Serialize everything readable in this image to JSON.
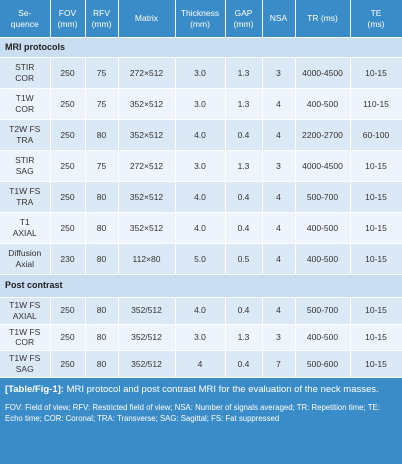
{
  "table": {
    "columns": [
      "Se-\nquence",
      "FOV\n(mm)",
      "RFV\n(mm)",
      "Matrix",
      "Thickness\n(mm)",
      "GAP\n(mm)",
      "NSA",
      "TR (ms)",
      "TE\n(ms)"
    ],
    "sections": [
      {
        "title": "MRI protocols",
        "rows": [
          [
            "STIR\nCOR",
            "250",
            "75",
            "272×512",
            "3.0",
            "1.3",
            "3",
            "4000-4500",
            "10-15"
          ],
          [
            "T1W\nCOR",
            "250",
            "75",
            "352×512",
            "3.0",
            "1.3",
            "4",
            "400-500",
            "110-15"
          ],
          [
            "T2W FS\nTRA",
            "250",
            "80",
            "352×512",
            "4.0",
            "0.4",
            "4",
            "2200-2700",
            "60-100"
          ],
          [
            "STIR\nSAG",
            "250",
            "75",
            "272×512",
            "3.0",
            "1.3",
            "3",
            "4000-4500",
            "10-15"
          ],
          [
            "T1W FS\nTRA",
            "250",
            "80",
            "352×512",
            "4.0",
            "0.4",
            "4",
            "500-700",
            "10-15"
          ],
          [
            "T1\nAXIAL",
            "250",
            "80",
            "352×512",
            "4.0",
            "0.4",
            "4",
            "400-500",
            "10-15"
          ],
          [
            "Diffusion\nAxial",
            "230",
            "80",
            "112×80",
            "5.0",
            "0.5",
            "4",
            "400-500",
            "10-15"
          ]
        ]
      },
      {
        "title": "Post contrast",
        "rows": [
          [
            "T1W FS\nAXIAL",
            "250",
            "80",
            "352/512",
            "4.0",
            "0.4",
            "4",
            "500-700",
            "10-15"
          ],
          [
            "T1W FS\nCOR",
            "250",
            "80",
            "352/512",
            "3.0",
            "1.3",
            "3",
            "400-500",
            "10-15"
          ],
          [
            "T1W FS\nSAG",
            "250",
            "80",
            "352/512",
            "4",
            "0.4",
            "7",
            "500-600",
            "10-15"
          ]
        ]
      }
    ]
  },
  "caption": {
    "label": "[Table/Fig-1]:",
    "text": "MRI protocol and post contrast MRI for the evaluation of the neck masses.",
    "note": "FOV: Field of view; RFV: Restricted field of view; NSA: Number of signals averaged; TR: Repetition time; TE: Echo time; COR: Coronal; TRA: Transverse; SAG: Sagittal; FS: Fat suppressed"
  }
}
